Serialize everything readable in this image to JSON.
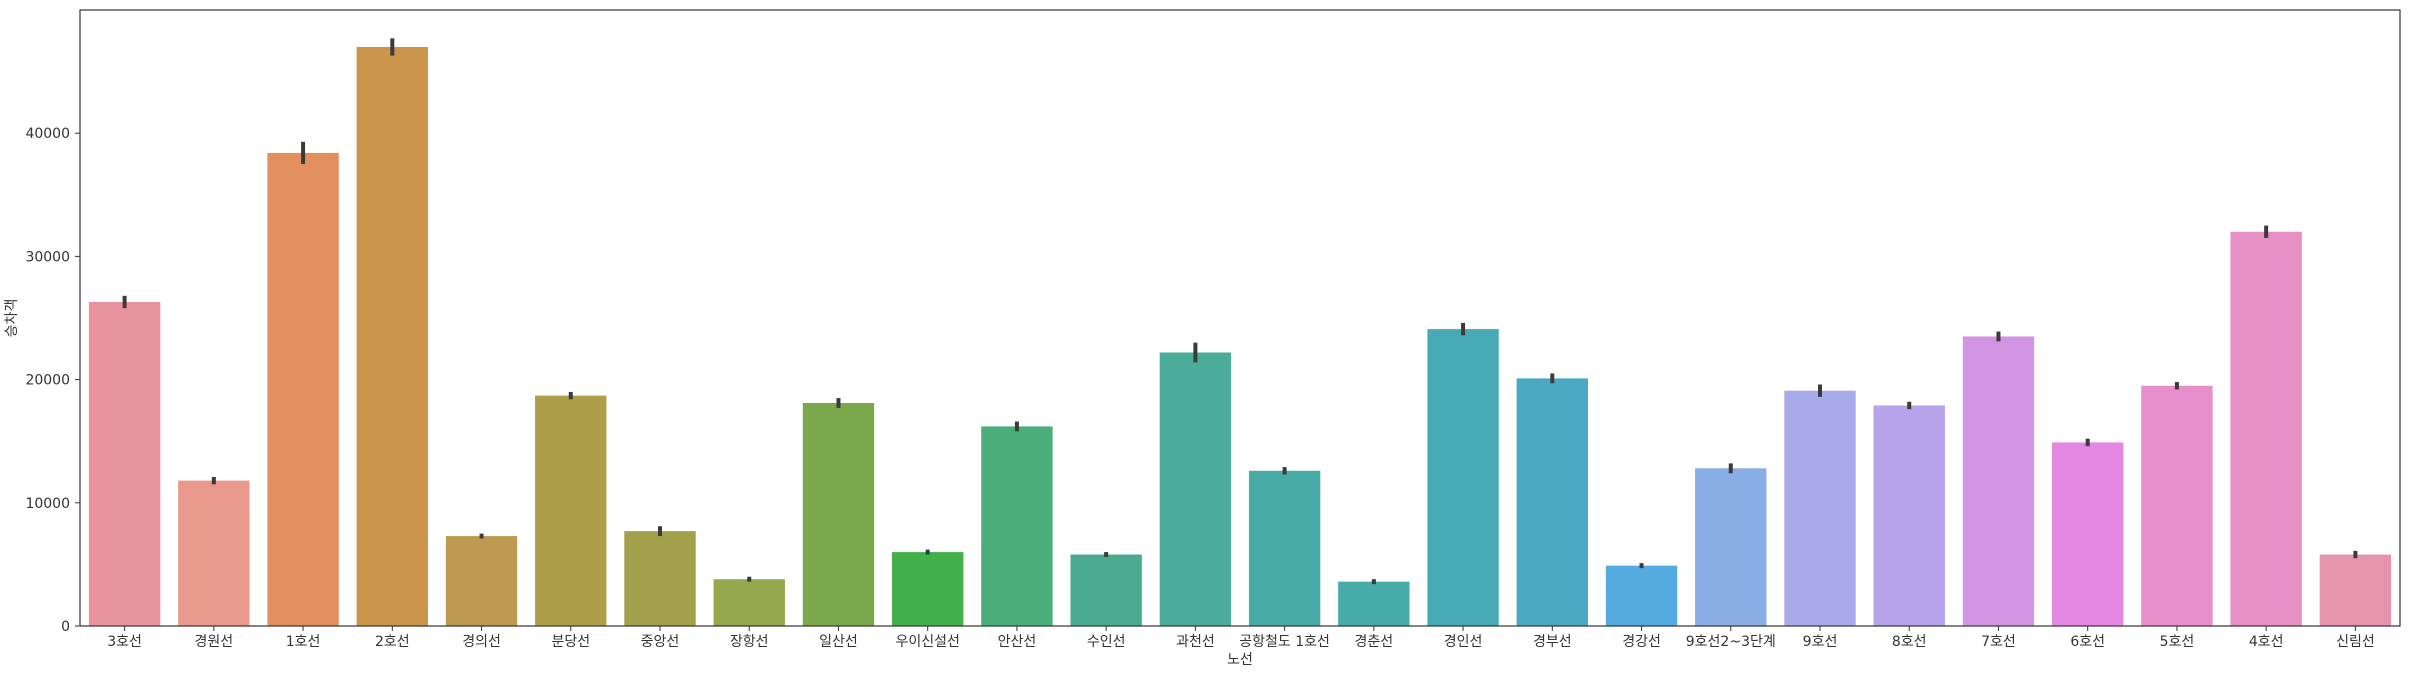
{
  "chart_data": {
    "type": "bar",
    "xlabel": "노선",
    "ylabel": "승차객",
    "ylim": [
      0,
      50000
    ],
    "yticks": [
      0,
      10000,
      20000,
      30000,
      40000
    ],
    "grid": false,
    "error_bars": true,
    "categories": [
      "3호선",
      "경원선",
      "1호선",
      "2호선",
      "경의선",
      "분당선",
      "중앙선",
      "장항선",
      "일산선",
      "우이신설선",
      "안산선",
      "수인선",
      "과천선",
      "공항철도 1호선",
      "경춘선",
      "경인선",
      "경부선",
      "경강선",
      "9호선2~3단계",
      "9호선",
      "8호선",
      "7호선",
      "6호선",
      "5호선",
      "4호선",
      "신림선"
    ],
    "values": [
      26300,
      11800,
      38400,
      47000,
      7300,
      18700,
      7700,
      3800,
      18100,
      6000,
      16200,
      5800,
      22200,
      12600,
      3600,
      24100,
      20100,
      4900,
      12800,
      19100,
      17900,
      23500,
      14900,
      19500,
      32000,
      5800
    ],
    "error": [
      500,
      300,
      900,
      700,
      200,
      300,
      400,
      200,
      400,
      200,
      400,
      200,
      800,
      300,
      200,
      500,
      400,
      200,
      400,
      500,
      300,
      400,
      300,
      300,
      500,
      300
    ],
    "colors": [
      "#e8949e",
      "#e8998b",
      "#e3905f",
      "#cc954c",
      "#bd9a50",
      "#ad9f47",
      "#a3a04c",
      "#97a74d",
      "#7ba84b",
      "#43b14a",
      "#49ae7a",
      "#4aab8f",
      "#4aac99",
      "#49aba5",
      "#46aba9",
      "#47aab5",
      "#4baac2",
      "#55aadf",
      "#8bade5",
      "#a8aae9",
      "#b6a3ea",
      "#d295e3",
      "#e487e2",
      "#e58fcb",
      "#e68fc4",
      "#e694ae"
    ],
    "tick_format": {
      "thousands": false
    }
  }
}
